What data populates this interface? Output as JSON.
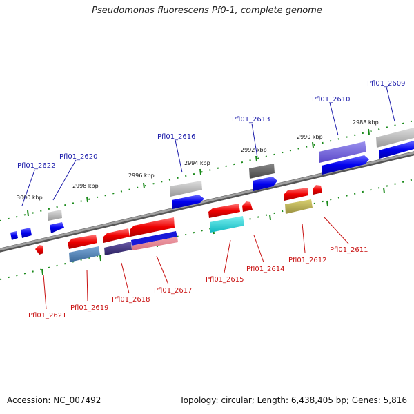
{
  "title": "Pseudomonas fluorescens Pf0-1, complete genome",
  "footer": {
    "accession": "Accession: NC_007492",
    "summary": "Topology: circular; Length: 6,438,405 bp; Genes: 5,816"
  },
  "colors": {
    "top_label": "#1a1aaa",
    "bottom_label": "#c81010",
    "backbone": "#888888",
    "tick": "#1a8a1a"
  },
  "kbp_labels": [
    "3000 kbp",
    "2998 kbp",
    "2996 kbp",
    "2994 kbp",
    "2992 kbp",
    "2990 kbp",
    "2988 kbp"
  ],
  "top_genes": [
    "Pfl01_2622",
    "Pfl01_2620",
    "Pfl01_2616",
    "Pfl01_2613",
    "Pfl01_2610",
    "Pfl01_2609"
  ],
  "bottom_genes": [
    "Pfl01_2621",
    "Pfl01_2619",
    "Pfl01_2618",
    "Pfl01_2617",
    "Pfl01_2615",
    "Pfl01_2614",
    "Pfl01_2612",
    "Pfl01_2611"
  ]
}
